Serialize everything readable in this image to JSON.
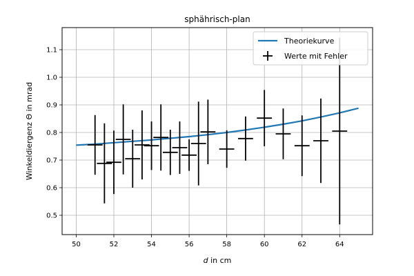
{
  "chart_data": {
    "type": "scatter",
    "title": "sphährisch-plan",
    "xlabel_var": "d",
    "xlabel_rest": " in cm",
    "ylabel": "Winkeldiergenz Θ in mrad",
    "xlim": [
      49.25,
      65.75
    ],
    "ylim": [
      0.43,
      1.18
    ],
    "xticks": [
      50,
      52,
      54,
      56,
      58,
      60,
      62,
      64
    ],
    "yticks": [
      0.5,
      0.6,
      0.7,
      0.8,
      0.9,
      1.0,
      1.1
    ],
    "grid": true,
    "legend_placement": "top-right",
    "series": [
      {
        "name": "Theoriekurve",
        "kind": "line",
        "color": "#1f77b4",
        "x": [
          50,
          51,
          52,
          53,
          54,
          55,
          56,
          57,
          58,
          59,
          60,
          61,
          62,
          63,
          64,
          65
        ],
        "y": [
          0.754,
          0.758,
          0.763,
          0.768,
          0.773,
          0.779,
          0.785,
          0.792,
          0.8,
          0.809,
          0.819,
          0.83,
          0.842,
          0.856,
          0.871,
          0.888
        ]
      },
      {
        "name": "Werte mit Fehler",
        "kind": "errorbar",
        "color": "#000000",
        "x": [
          51,
          51.5,
          52,
          52.5,
          53,
          53.5,
          54,
          54.5,
          55,
          55.5,
          56,
          56.5,
          57,
          58,
          59,
          60,
          61,
          62,
          63,
          64
        ],
        "y": [
          0.755,
          0.688,
          0.692,
          0.775,
          0.705,
          0.755,
          0.752,
          0.782,
          0.728,
          0.745,
          0.718,
          0.76,
          0.802,
          0.74,
          0.778,
          0.852,
          0.795,
          0.752,
          0.77,
          0.805
        ],
        "yerr": [
          0.108,
          0.145,
          0.115,
          0.127,
          0.105,
          0.125,
          0.088,
          0.12,
          0.082,
          0.095,
          0.057,
          0.152,
          0.117,
          0.068,
          0.08,
          0.102,
          0.092,
          0.11,
          0.153,
          0.338
        ],
        "xerr": 0.4
      }
    ]
  }
}
